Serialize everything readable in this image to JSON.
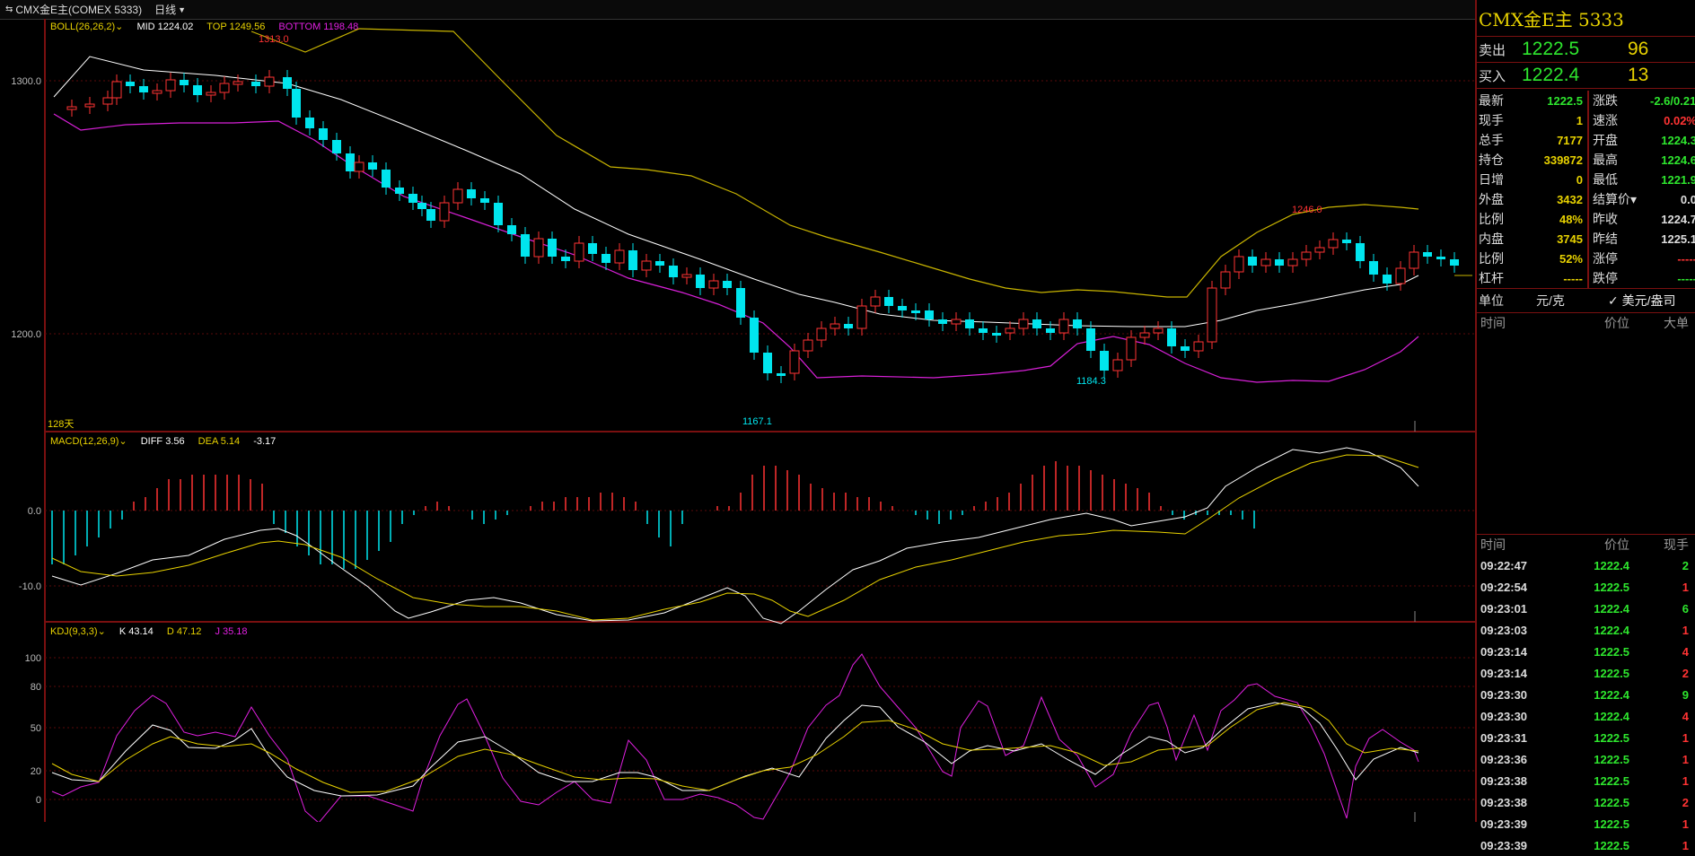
{
  "topbar": {
    "symbol": "CMX金E主(COMEX 5333)",
    "period": "日线"
  },
  "main": {
    "indicator": "BOLL(26,26,2)",
    "mid_label": "MID 1224.02",
    "top_label": "TOP 1249.56",
    "bottom_label": "BOTTOM 1198.48",
    "y_ticks": [
      "1300.0",
      "1200.0"
    ],
    "days_label": "128天",
    "annotations": {
      "high": "1313.0",
      "low": "1167.1",
      "low2": "1184.3",
      "high2": "1246.0"
    }
  },
  "macd": {
    "indicator": "MACD(12,26,9)",
    "diff_label": "DIFF 3.56",
    "dea_label": "DEA 5.14",
    "macd_value": "-3.17",
    "y_ticks": [
      "0.0",
      "-10.0"
    ]
  },
  "kdj": {
    "indicator": "KDJ(9,3,3)",
    "k_label": "K 43.14",
    "d_label": "D 47.12",
    "j_label": "J 35.18",
    "y_ticks": [
      "100",
      "80",
      "50",
      "20",
      "0"
    ]
  },
  "side": {
    "title": "CMX金E主  5333",
    "sell": {
      "label": "卖出",
      "price": "1222.5",
      "vol": "96"
    },
    "buy": {
      "label": "买入",
      "price": "1222.4",
      "vol": "13"
    },
    "rows": [
      {
        "l1": "最新",
        "v1": "1222.5",
        "c1": "g",
        "l2": "涨跌",
        "v2": "-2.6/0.21%",
        "c2": "g"
      },
      {
        "l1": "现手",
        "v1": "1",
        "c1": "y",
        "l2": "速涨",
        "v2": "0.02%",
        "c2": "rd"
      },
      {
        "l1": "总手",
        "v1": "7177",
        "c1": "y",
        "l2": "开盘",
        "v2": "1224.3",
        "c2": "g"
      },
      {
        "l1": "持仓",
        "v1": "339872",
        "c1": "y",
        "l2": "最高",
        "v2": "1224.6",
        "c2": "g"
      },
      {
        "l1": "日增",
        "v1": "0",
        "c1": "y",
        "l2": "最低",
        "v2": "1221.9",
        "c2": "g"
      },
      {
        "l1": "外盘",
        "v1": "3432",
        "c1": "y",
        "l2": "结算价▾",
        "v2": "0.0",
        "c2": "wt"
      },
      {
        "l1": "比例",
        "v1": "48%",
        "c1": "y",
        "l2": "昨收",
        "v2": "1224.7",
        "c2": "wt"
      },
      {
        "l1": "内盘",
        "v1": "3745",
        "c1": "y",
        "l2": "昨结",
        "v2": "1225.1",
        "c2": "wt"
      },
      {
        "l1": "比例",
        "v1": "52%",
        "c1": "y",
        "l2": "涨停",
        "v2": "-----",
        "c2": "rd"
      },
      {
        "l1": "杠杆",
        "v1": "-----",
        "c1": "y",
        "l2": "跌停",
        "v2": "-----",
        "c2": "g"
      }
    ],
    "unit": {
      "label": "单位",
      "opt1": "元/克",
      "opt2": "✓ 美元/盎司"
    },
    "big_header": {
      "time": "时间",
      "price": "价位",
      "big": "大单"
    },
    "tick_header": {
      "time": "时间",
      "price": "价位",
      "vol": "现手"
    },
    "ticks": [
      {
        "time": "09:22:47",
        "price": "1222.4",
        "vol": "2",
        "pc": "g",
        "vc": "g"
      },
      {
        "time": "09:22:54",
        "price": "1222.5",
        "vol": "1",
        "pc": "g",
        "vc": "rd"
      },
      {
        "time": "09:23:01",
        "price": "1222.4",
        "vol": "6",
        "pc": "g",
        "vc": "g"
      },
      {
        "time": "09:23:03",
        "price": "1222.4",
        "vol": "1",
        "pc": "g",
        "vc": "rd"
      },
      {
        "time": "09:23:14",
        "price": "1222.5",
        "vol": "4",
        "pc": "g",
        "vc": "rd"
      },
      {
        "time": "09:23:14",
        "price": "1222.5",
        "vol": "2",
        "pc": "g",
        "vc": "rd"
      },
      {
        "time": "09:23:30",
        "price": "1222.4",
        "vol": "9",
        "pc": "g",
        "vc": "g"
      },
      {
        "time": "09:23:30",
        "price": "1222.4",
        "vol": "4",
        "pc": "g",
        "vc": "rd"
      },
      {
        "time": "09:23:31",
        "price": "1222.5",
        "vol": "1",
        "pc": "g",
        "vc": "rd"
      },
      {
        "time": "09:23:36",
        "price": "1222.5",
        "vol": "1",
        "pc": "g",
        "vc": "rd"
      },
      {
        "time": "09:23:38",
        "price": "1222.5",
        "vol": "1",
        "pc": "g",
        "vc": "rd"
      },
      {
        "time": "09:23:38",
        "price": "1222.5",
        "vol": "2",
        "pc": "g",
        "vc": "rd"
      },
      {
        "time": "09:23:39",
        "price": "1222.5",
        "vol": "1",
        "pc": "g",
        "vc": "rd"
      },
      {
        "time": "09:23:39",
        "price": "1222.5",
        "vol": "1",
        "pc": "g",
        "vc": "rd"
      }
    ]
  },
  "colors": {
    "up": "#ff3333",
    "down": "#00e5ee",
    "mid": "#ffffff",
    "top": "#e8d200",
    "bottom": "#e020e0",
    "grid": "#7a1010"
  }
}
